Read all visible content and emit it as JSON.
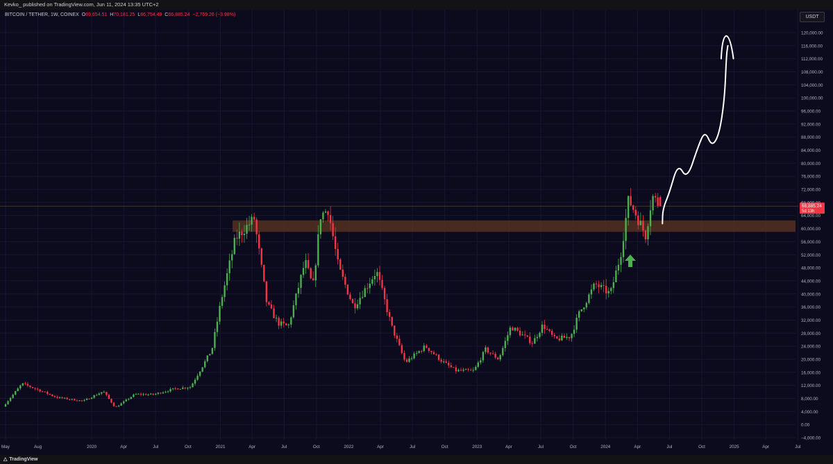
{
  "header": {
    "publisher_text": "Kevko_ published on TradingView.com, Jun 11, 2024 13:35 UTC+2"
  },
  "symbol": {
    "name": "BITCOIN / TETHER, 1W, COINEX",
    "open_label": "O",
    "open": "69,654.51",
    "high_label": "H",
    "high": "70,181.25",
    "low_label": "L",
    "low": "66,754.49",
    "close_label": "C",
    "close": "66,885.24",
    "change": "−2,769.26 (−3.98%)"
  },
  "currency_badge": "USDT",
  "price_axis": {
    "labels": [
      "120,000.00",
      "116,000.00",
      "112,000.00",
      "108,000.00",
      "104,000.00",
      "100,000.00",
      "96,000.00",
      "92,000.00",
      "88,000.00",
      "84,000.00",
      "80,000.00",
      "76,000.00",
      "72,000.00",
      "68,000.00",
      "64,000.00",
      "60,000.00",
      "56,000.00",
      "52,000.00",
      "48,000.00",
      "44,000.00",
      "40,000.00",
      "36,000.00",
      "32,000.00",
      "28,000.00",
      "24,000.00",
      "20,000.00",
      "16,000.00",
      "12,000.00",
      "8,000.00",
      "4,000.00",
      "0.00",
      "−4,000.00"
    ],
    "current_price": "66,885.24",
    "countdown": "5d 13h"
  },
  "time_axis": {
    "labels": [
      "May",
      "Aug",
      "2020",
      "Apr",
      "Jul",
      "Oct",
      "2021",
      "Apr",
      "Jul",
      "Oct",
      "2022",
      "Apr",
      "Jul",
      "Oct",
      "2023",
      "Apr",
      "Jul",
      "Oct",
      "2024",
      "Apr",
      "Jul",
      "Oct",
      "2025",
      "Apr",
      "Jul"
    ]
  },
  "colors": {
    "background": "#0c0a1d",
    "up": "#4caf50",
    "down": "#f23645",
    "zone": "#5c3520",
    "price_line": "#f23645",
    "arrow": "#4caf50",
    "projection": "#ffffff"
  },
  "footer": {
    "brand": "TradingView",
    "logo_icon": "tradingview-logo-icon"
  },
  "chart_data": {
    "type": "candlestick",
    "title": "BITCOIN / TETHER, 1W, COINEX",
    "xlabel": "",
    "ylabel": "",
    "ylim": [
      -4000,
      122000
    ],
    "xlim": [
      "2019-05-01",
      "2025-08-01"
    ],
    "grid": true,
    "interval": "1W",
    "resistance_support_zone": [
      59000,
      62500
    ],
    "current_price": 66885.24,
    "anchors": [
      {
        "date": "2019-05-01",
        "price": 5500
      },
      {
        "date": "2019-06-24",
        "price": 12500
      },
      {
        "date": "2019-08-01",
        "price": 11000
      },
      {
        "date": "2019-10-01",
        "price": 8300
      },
      {
        "date": "2019-12-15",
        "price": 7200
      },
      {
        "date": "2020-02-10",
        "price": 10200
      },
      {
        "date": "2020-03-15",
        "price": 5200
      },
      {
        "date": "2020-05-10",
        "price": 9300
      },
      {
        "date": "2020-07-01",
        "price": 9200
      },
      {
        "date": "2020-09-01",
        "price": 11000
      },
      {
        "date": "2020-10-15",
        "price": 11500
      },
      {
        "date": "2020-12-15",
        "price": 23000
      },
      {
        "date": "2021-01-10",
        "price": 38000
      },
      {
        "date": "2021-02-20",
        "price": 57000
      },
      {
        "date": "2021-04-14",
        "price": 63000
      },
      {
        "date": "2021-05-20",
        "price": 37000
      },
      {
        "date": "2021-06-22",
        "price": 31000
      },
      {
        "date": "2021-07-20",
        "price": 30000
      },
      {
        "date": "2021-09-06",
        "price": 50000
      },
      {
        "date": "2021-09-28",
        "price": 42000
      },
      {
        "date": "2021-10-20",
        "price": 64000
      },
      {
        "date": "2021-11-10",
        "price": 66000
      },
      {
        "date": "2021-12-10",
        "price": 48000
      },
      {
        "date": "2022-01-22",
        "price": 36000
      },
      {
        "date": "2022-03-28",
        "price": 47000
      },
      {
        "date": "2022-05-10",
        "price": 30000
      },
      {
        "date": "2022-06-18",
        "price": 19000
      },
      {
        "date": "2022-08-14",
        "price": 24000
      },
      {
        "date": "2022-10-01",
        "price": 19300
      },
      {
        "date": "2022-11-09",
        "price": 16500
      },
      {
        "date": "2022-12-30",
        "price": 16500
      },
      {
        "date": "2023-02-01",
        "price": 23000
      },
      {
        "date": "2023-03-10",
        "price": 20000
      },
      {
        "date": "2023-04-14",
        "price": 30000
      },
      {
        "date": "2023-06-15",
        "price": 25000
      },
      {
        "date": "2023-07-14",
        "price": 30500
      },
      {
        "date": "2023-08-18",
        "price": 26000
      },
      {
        "date": "2023-10-01",
        "price": 27000
      },
      {
        "date": "2023-10-25",
        "price": 34000
      },
      {
        "date": "2023-12-10",
        "price": 43000
      },
      {
        "date": "2024-01-22",
        "price": 40000
      },
      {
        "date": "2024-02-20",
        "price": 52000
      },
      {
        "date": "2024-03-14",
        "price": 69000
      },
      {
        "date": "2024-04-01",
        "price": 65000
      },
      {
        "date": "2024-05-01",
        "price": 58000
      },
      {
        "date": "2024-05-20",
        "price": 70000
      },
      {
        "date": "2024-06-11",
        "price": 66885
      }
    ],
    "last_candle": {
      "open": 69654.51,
      "high": 70181.25,
      "low": 66754.49,
      "close": 66885.24
    },
    "projection_path": [
      {
        "date": "2024-06-11",
        "price": 61500
      },
      {
        "date": "2024-06-12",
        "price": 66000
      },
      {
        "date": "2024-07-01",
        "price": 71000
      },
      {
        "date": "2024-07-25",
        "price": 80000
      },
      {
        "date": "2024-08-20",
        "price": 75000
      },
      {
        "date": "2024-09-20",
        "price": 85000
      },
      {
        "date": "2024-10-10",
        "price": 90000
      },
      {
        "date": "2024-10-30",
        "price": 85000
      },
      {
        "date": "2024-11-20",
        "price": 89000
      },
      {
        "date": "2024-12-05",
        "price": 100000
      },
      {
        "date": "2024-12-10",
        "price": 113000
      },
      {
        "date": "2024-12-14",
        "price": 116000
      }
    ],
    "projection_arrowhead": [
      {
        "date": "2024-11-25",
        "price": 112000
      },
      {
        "date": "2024-12-10",
        "price": 119000
      },
      {
        "date": "2024-12-30",
        "price": 112000
      }
    ]
  }
}
